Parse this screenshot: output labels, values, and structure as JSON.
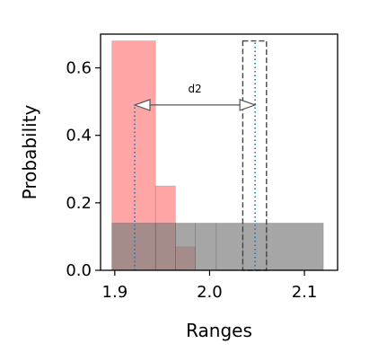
{
  "chart_data": {
    "type": "bar",
    "xlabel": "Ranges",
    "ylabel": "Probability",
    "xlim": [
      1.885,
      2.135
    ],
    "ylim": [
      0.0,
      0.7
    ],
    "xticks": [
      1.9,
      2.0,
      2.1
    ],
    "xtick_labels": [
      "1.9",
      "2.0",
      "2.1"
    ],
    "yticks": [
      0.0,
      0.2,
      0.4,
      0.6
    ],
    "ytick_labels": [
      "0.0",
      "0.2",
      "0.4",
      "0.6"
    ],
    "grid": false,
    "series": [
      {
        "color": "#ff7f7f",
        "bars": [
          {
            "x0": 1.897,
            "x1": 1.943,
            "height": 0.68
          },
          {
            "x0": 1.943,
            "x1": 1.964,
            "height": 0.25
          },
          {
            "x0": 1.964,
            "x1": 1.985,
            "height": 0.07
          }
        ]
      },
      {
        "color": "#808080",
        "bars": [
          {
            "x0": 1.897,
            "x1": 1.943,
            "height": 0.14
          },
          {
            "x0": 1.943,
            "x1": 1.964,
            "height": 0.14
          },
          {
            "x0": 1.964,
            "x1": 1.985,
            "height": 0.14
          },
          {
            "x0": 1.985,
            "x1": 2.007,
            "height": 0.14
          },
          {
            "x0": 2.007,
            "x1": 2.035,
            "height": 0.14
          },
          {
            "x0": 2.035,
            "x1": 2.06,
            "height": 0.14
          },
          {
            "x0": 2.06,
            "x1": 2.12,
            "height": 0.14
          }
        ]
      }
    ],
    "dashed_box": {
      "x0": 2.035,
      "x1": 2.06,
      "height": 0.68
    },
    "vlines": [
      {
        "x": 1.921,
        "y0": 0.0,
        "y1": 0.49,
        "color": "#1f77b4"
      },
      {
        "x": 2.048,
        "y0": 0.0,
        "y1": 0.68,
        "color": "#1f77b4"
      }
    ],
    "annotation": {
      "text": "d2",
      "x_from": 1.921,
      "x_to": 2.048,
      "y": 0.49
    }
  }
}
